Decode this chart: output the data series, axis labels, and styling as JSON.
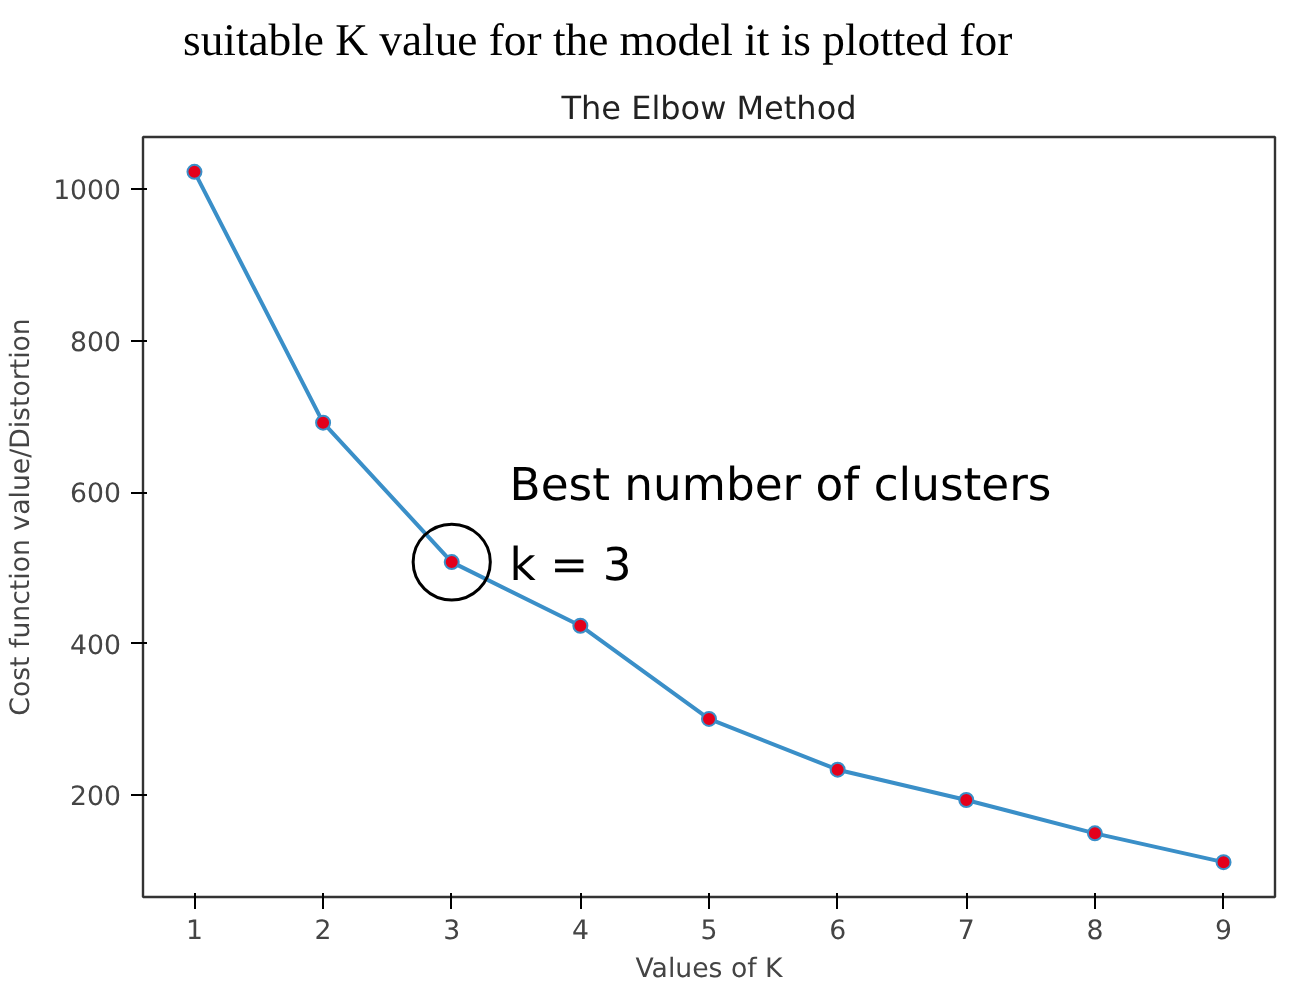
{
  "chart_data": {
    "type": "line",
    "title": "The Elbow Method",
    "xlabel": "Values of K",
    "ylabel": "Cost function value/Distortion",
    "x": [
      1,
      2,
      3,
      4,
      5,
      6,
      7,
      8,
      9
    ],
    "series": [
      {
        "color": "#3a8fc8",
        "colors": [
          "#e3001b",
          "#e3001b",
          "#e3001b",
          "#e3001b",
          "#e3001b",
          "#e3001b",
          "#e3001b",
          "#e3001b",
          "#e3001b"
        ],
        "values": [
          1023,
          692,
          508,
          424,
          301,
          234,
          194,
          150,
          112
        ]
      }
    ],
    "marker": "circle",
    "xlim": [
      0.6,
      9.4
    ],
    "ylim": [
      66,
      1069
    ],
    "xticks": [
      1,
      2,
      3,
      4,
      5,
      6,
      7,
      8,
      9
    ],
    "yticks": [
      200,
      400,
      600,
      800,
      1000
    ],
    "grid": false,
    "annotations": [
      "suitable K value for the model it is plotted for",
      {
        "text": "Best number of clusters\nk = 3",
        "x": 3,
        "y": 508
      }
    ]
  }
}
